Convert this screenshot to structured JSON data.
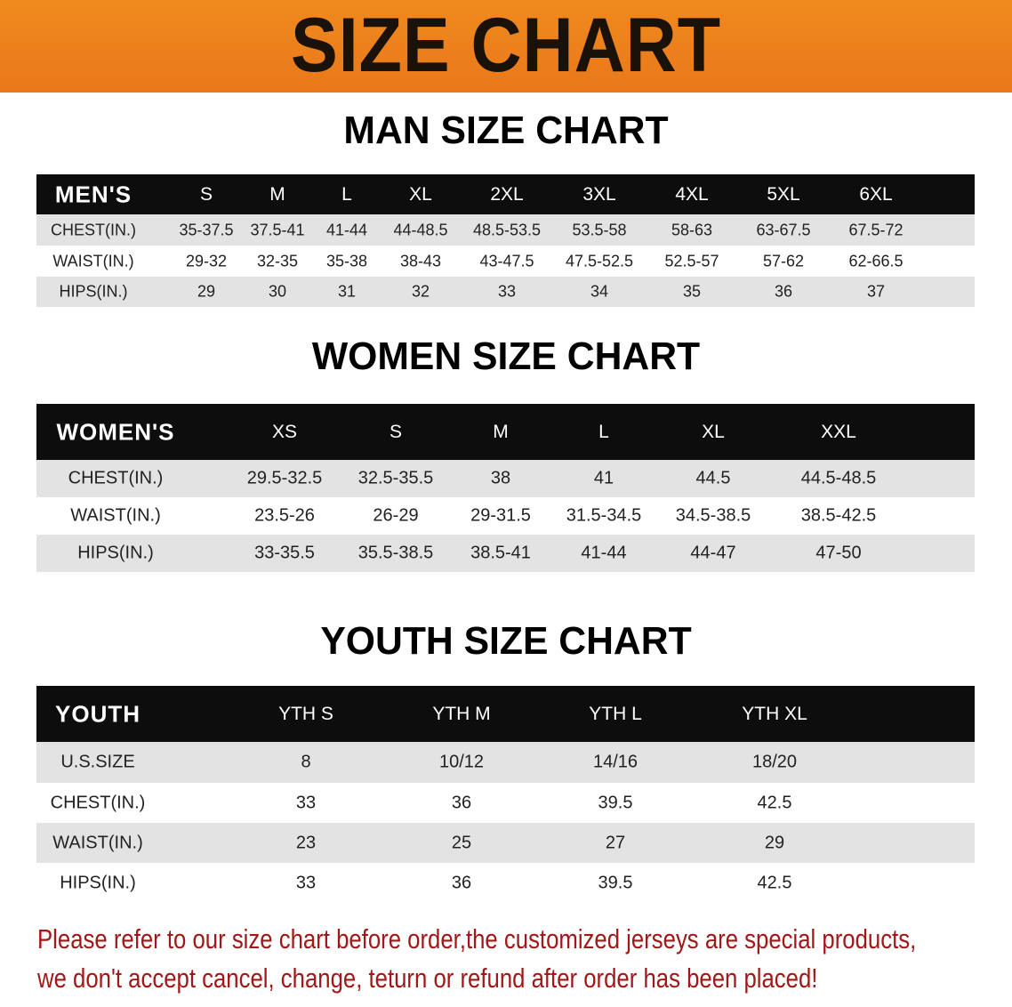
{
  "banner_title": "SIZE CHART",
  "colors": {
    "banner": "#ef861d",
    "header_row": "#0e0d0d",
    "stripe": "#e3e3e3",
    "note": "#a01818"
  },
  "chart_data": [
    {
      "type": "table",
      "title": "MAN SIZE CHART",
      "columns": [
        "MEN'S",
        "S",
        "M",
        "L",
        "XL",
        "2XL",
        "3XL",
        "4XL",
        "5XL",
        "6XL"
      ],
      "rows": [
        [
          "CHEST(IN.)",
          "35-37.5",
          "37.5-41",
          "41-44",
          "44-48.5",
          "48.5-53.5",
          "53.5-58",
          "58-63",
          "63-67.5",
          "67.5-72"
        ],
        [
          "WAIST(IN.)",
          "29-32",
          "32-35",
          "35-38",
          "38-43",
          "43-47.5",
          "47.5-52.5",
          "52.5-57",
          "57-62",
          "62-66.5"
        ],
        [
          "HIPS(IN.)",
          "29",
          "30",
          "31",
          "32",
          "33",
          "34",
          "35",
          "36",
          "37"
        ]
      ]
    },
    {
      "type": "table",
      "title": "WOMEN SIZE CHART",
      "columns": [
        "WOMEN'S",
        "XS",
        "S",
        "M",
        "L",
        "XL",
        "XXL"
      ],
      "rows": [
        [
          "CHEST(IN.)",
          "29.5-32.5",
          "32.5-35.5",
          "38",
          "41",
          "44.5",
          "44.5-48.5"
        ],
        [
          "WAIST(IN.)",
          "23.5-26",
          "26-29",
          "29-31.5",
          "31.5-34.5",
          "34.5-38.5",
          "38.5-42.5"
        ],
        [
          "HIPS(IN.)",
          "33-35.5",
          "35.5-38.5",
          "38.5-41",
          "41-44",
          "44-47",
          "47-50"
        ]
      ]
    },
    {
      "type": "table",
      "title": "YOUTH SIZE CHART",
      "columns": [
        "YOUTH",
        "YTH S",
        "YTH M",
        "YTH L",
        "YTH XL"
      ],
      "rows": [
        [
          "U.S.SIZE",
          "8",
          "10/12",
          "14/16",
          "18/20"
        ],
        [
          "CHEST(IN.)",
          "33",
          "36",
          "39.5",
          "42.5"
        ],
        [
          "WAIST(IN.)",
          "23",
          "25",
          "27",
          "29"
        ],
        [
          "HIPS(IN.)",
          "33",
          "36",
          "39.5",
          "42.5"
        ]
      ]
    }
  ],
  "note": {
    "line1": "Please refer to our size chart before order,the customized jerseys are special products,",
    "line2": "we don't accept cancel, change, teturn or refund after order has been placed!"
  }
}
